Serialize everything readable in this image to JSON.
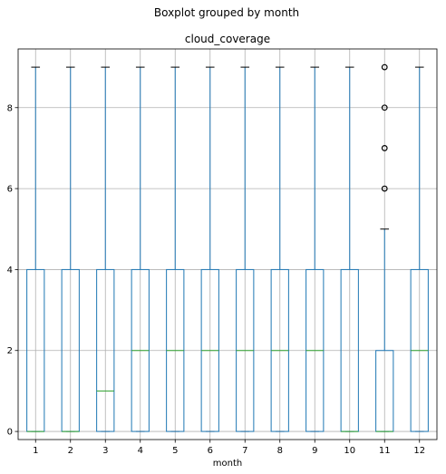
{
  "chart_data": {
    "type": "boxplot",
    "suptitle": "Boxplot grouped by month",
    "title": "cloud_coverage",
    "xlabel": "month",
    "ylabel": "",
    "ylim": [
      -0.2,
      9.45
    ],
    "yticks": [
      0,
      2,
      4,
      6,
      8
    ],
    "grid": true,
    "categories": [
      "1",
      "2",
      "3",
      "4",
      "5",
      "6",
      "7",
      "8",
      "9",
      "10",
      "11",
      "12"
    ],
    "boxes": [
      {
        "whisker_low": 0,
        "q1": 0,
        "median": 0,
        "q3": 4,
        "whisker_high": 9,
        "outliers": []
      },
      {
        "whisker_low": 0,
        "q1": 0,
        "median": 0,
        "q3": 4,
        "whisker_high": 9,
        "outliers": []
      },
      {
        "whisker_low": 0,
        "q1": 0,
        "median": 1,
        "q3": 4,
        "whisker_high": 9,
        "outliers": []
      },
      {
        "whisker_low": 0,
        "q1": 0,
        "median": 2,
        "q3": 4,
        "whisker_high": 9,
        "outliers": []
      },
      {
        "whisker_low": 0,
        "q1": 0,
        "median": 2,
        "q3": 4,
        "whisker_high": 9,
        "outliers": []
      },
      {
        "whisker_low": 0,
        "q1": 0,
        "median": 2,
        "q3": 4,
        "whisker_high": 9,
        "outliers": []
      },
      {
        "whisker_low": 0,
        "q1": 0,
        "median": 2,
        "q3": 4,
        "whisker_high": 9,
        "outliers": []
      },
      {
        "whisker_low": 0,
        "q1": 0,
        "median": 2,
        "q3": 4,
        "whisker_high": 9,
        "outliers": []
      },
      {
        "whisker_low": 0,
        "q1": 0,
        "median": 2,
        "q3": 4,
        "whisker_high": 9,
        "outliers": []
      },
      {
        "whisker_low": 0,
        "q1": 0,
        "median": 0,
        "q3": 4,
        "whisker_high": 9,
        "outliers": []
      },
      {
        "whisker_low": 0,
        "q1": 0,
        "median": 0,
        "q3": 2,
        "whisker_high": 5,
        "outliers": [
          6,
          7,
          8,
          9
        ]
      },
      {
        "whisker_low": 0,
        "q1": 0,
        "median": 2,
        "q3": 4,
        "whisker_high": 9,
        "outliers": []
      }
    ],
    "colors": {
      "box": "#1f77b4",
      "median": "#2ca02c",
      "grid": "#b0b0b0",
      "axis": "#000000"
    }
  }
}
